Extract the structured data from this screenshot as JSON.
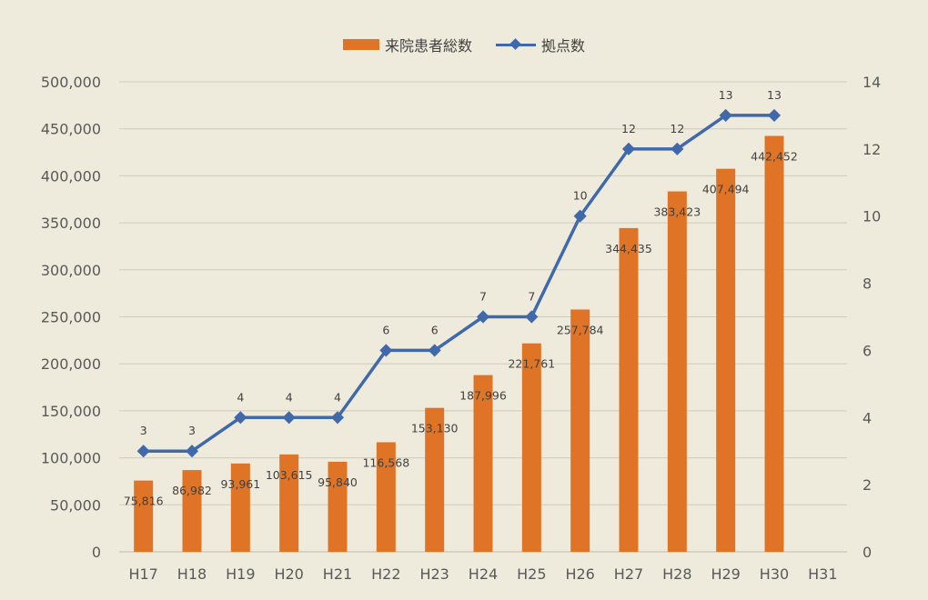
{
  "chart_data": {
    "type": "bar+line",
    "categories": [
      "H17",
      "H18",
      "H19",
      "H20",
      "H21",
      "H22",
      "H23",
      "H24",
      "H25",
      "H26",
      "H27",
      "H28",
      "H29",
      "H30",
      "H31"
    ],
    "series": [
      {
        "name": "来院患者総数",
        "type": "bar",
        "axis": "left",
        "color": "#e07426",
        "values": [
          75816,
          86982,
          93961,
          103615,
          95840,
          116568,
          153130,
          187996,
          221761,
          257784,
          344435,
          383423,
          407494,
          442452,
          null
        ],
        "labels": [
          "75,816",
          "86,982",
          "93,961",
          "103,615",
          "95,840",
          "116,568",
          "153,130",
          "187,996",
          "221,761",
          "257,784",
          "344,435",
          "383,423",
          "407,494",
          "442,452",
          ""
        ]
      },
      {
        "name": "拠点数",
        "type": "line",
        "axis": "right",
        "color": "#3f69aa",
        "values": [
          3,
          3,
          4,
          4,
          4,
          6,
          6,
          7,
          7,
          10,
          12,
          12,
          13,
          13,
          null
        ],
        "labels": [
          "3",
          "3",
          "4",
          "4",
          "4",
          "6",
          "6",
          "7",
          "7",
          "10",
          "12",
          "12",
          "13",
          "13",
          ""
        ]
      }
    ],
    "y_left": {
      "lim": [
        0,
        500000
      ],
      "ticks": [
        0,
        50000,
        100000,
        150000,
        200000,
        250000,
        300000,
        350000,
        400000,
        450000,
        500000
      ],
      "tick_labels": [
        "0",
        "50,000",
        "100,000",
        "150,000",
        "200,000",
        "250,000",
        "300,000",
        "350,000",
        "400,000",
        "450,000",
        "500,000"
      ]
    },
    "y_right": {
      "lim": [
        0,
        14
      ],
      "ticks": [
        0,
        2,
        4,
        6,
        8,
        10,
        12,
        14
      ],
      "tick_labels": [
        "0",
        "2",
        "4",
        "6",
        "8",
        "10",
        "12",
        "14"
      ]
    },
    "legend": {
      "position": "top-center",
      "entries": [
        "来院患者総数",
        "拠点数"
      ]
    },
    "grid": true,
    "title": "",
    "xlabel": "",
    "ylabel": ""
  }
}
